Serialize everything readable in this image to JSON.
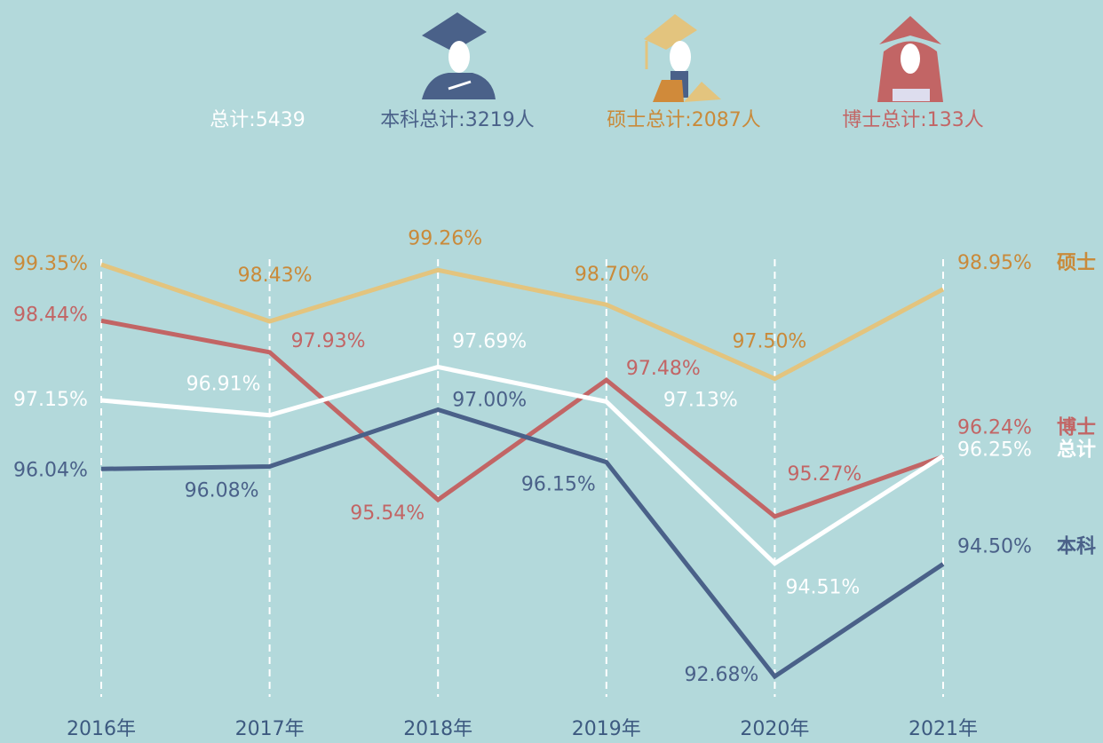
{
  "chart_data": {
    "type": "line",
    "legend_texts": [
      "总计:5439",
      "本科总计:3219人",
      "硕士总计:2087人",
      "博士总计:133人"
    ],
    "categories": [
      "2016年",
      "2017年",
      "2018年",
      "2019年",
      "2020年",
      "2021年"
    ],
    "series": [
      {
        "name": "硕士",
        "color": "#e3c47e",
        "label_color": "#c98a3a",
        "values": [
          99.35,
          98.43,
          99.26,
          98.7,
          97.5,
          98.95
        ],
        "value_labels": [
          "99.35%",
          "98.43%",
          "99.26%",
          "98.70%",
          "97.50%",
          "98.95%"
        ]
      },
      {
        "name": "博士",
        "color": "#c26565",
        "label_color": "#c26565",
        "values": [
          98.44,
          97.93,
          95.54,
          97.48,
          95.27,
          96.24
        ],
        "value_labels": [
          "98.44%",
          "97.93%",
          "95.54%",
          "97.48%",
          "95.27%",
          "96.24%"
        ]
      },
      {
        "name": "总计",
        "color": "#ffffff",
        "label_color": "#ffffff",
        "values": [
          97.15,
          96.91,
          97.69,
          97.13,
          94.51,
          96.25
        ],
        "value_labels": [
          "97.15%",
          "96.91%",
          "97.69%",
          "97.13%",
          "94.51%",
          "96.25%"
        ]
      },
      {
        "name": "本科",
        "color": "#4a6189",
        "label_color": "#4a6189",
        "values": [
          96.04,
          96.08,
          97.0,
          96.15,
          92.68,
          94.5
        ],
        "value_labels": [
          "96.04%",
          "96.08%",
          "97.00%",
          "96.15%",
          "92.68%",
          "94.50%"
        ]
      }
    ]
  }
}
